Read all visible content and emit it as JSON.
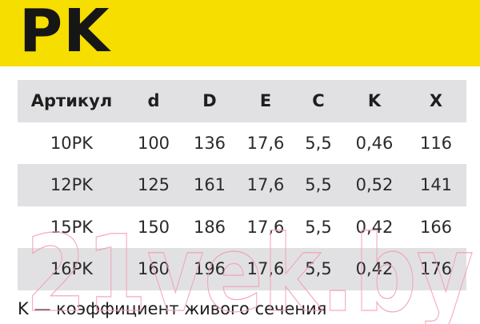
{
  "title": "PK",
  "table": {
    "headers": [
      "Артикул",
      "d",
      "D",
      "E",
      "C",
      "K",
      "X"
    ],
    "rows": [
      [
        "10PK",
        "100",
        "136",
        "17,6",
        "5,5",
        "0,46",
        "116"
      ],
      [
        "12PK",
        "125",
        "161",
        "17,6",
        "5,5",
        "0,52",
        "141"
      ],
      [
        "15PK",
        "150",
        "186",
        "17,6",
        "5,5",
        "0,42",
        "166"
      ],
      [
        "16PK",
        "160",
        "196",
        "17,6",
        "5,5",
        "0,42",
        "176"
      ]
    ]
  },
  "footnote": "K — коэффициент живого сечения",
  "watermark": "21vek.by",
  "colors": {
    "banner": "#f5de00",
    "row_stripe": "#e1e1e3",
    "watermark": "#f2a0b4"
  }
}
